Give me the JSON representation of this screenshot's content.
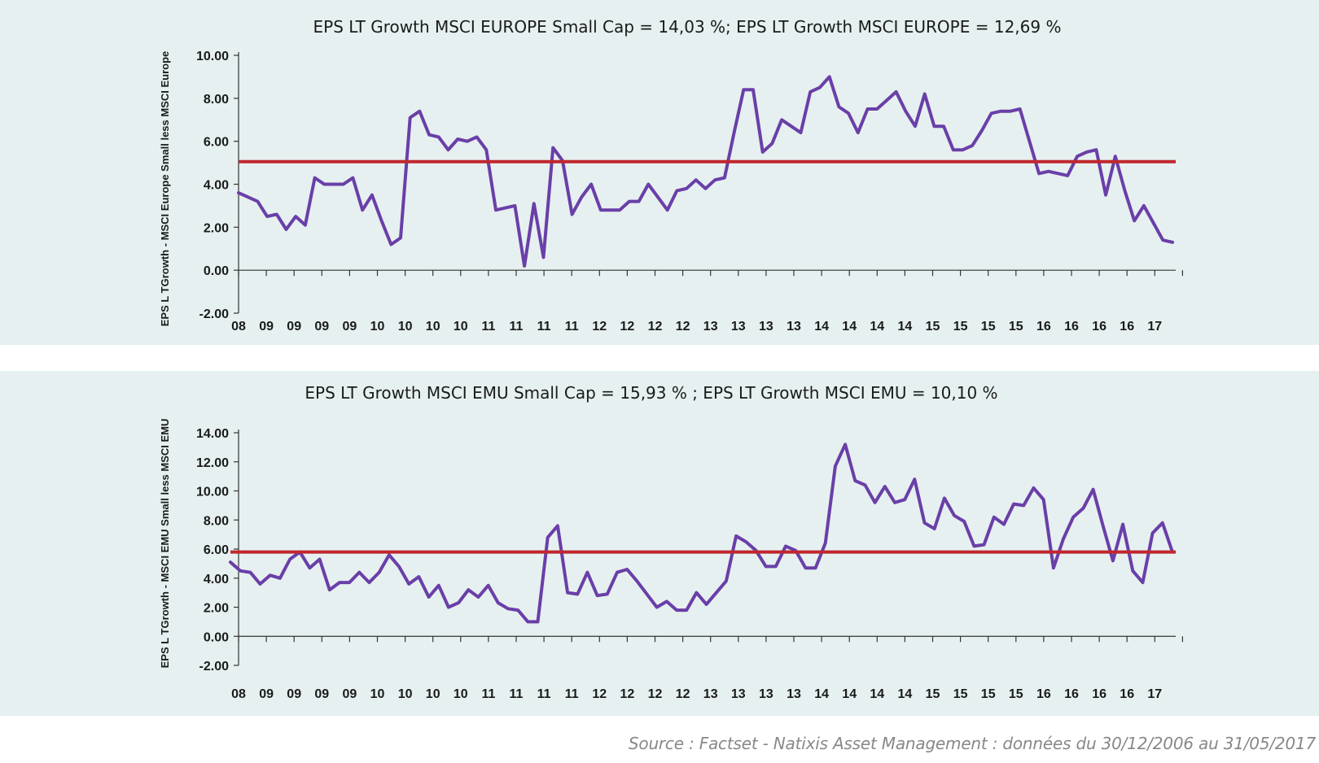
{
  "source": "Source : Factset - Natixis Asset Management : données du 30/12/2006 au 31/05/2017",
  "chart_data": [
    {
      "type": "line",
      "title": "EPS LT Growth MSCI EUROPE Small Cap = 14,03 %; EPS LT Growth MSCI EUROPE = 12,69 %",
      "ylabel": "EPS L TGrowth - MSCI Europe Small less MSCI Europe",
      "xlabel": "",
      "ylim": [
        -2,
        10
      ],
      "y_ticks": [
        "10.00",
        "8.00",
        "6.00",
        "4.00",
        "2.00",
        "0.00",
        "-2.00"
      ],
      "x_tick_labels": [
        "08",
        "09",
        "09",
        "09",
        "09",
        "10",
        "10",
        "10",
        "10",
        "11",
        "11",
        "11",
        "11",
        "12",
        "12",
        "12",
        "12",
        "13",
        "13",
        "13",
        "13",
        "14",
        "14",
        "14",
        "14",
        "15",
        "15",
        "15",
        "15",
        "16",
        "16",
        "16",
        "16",
        "17"
      ],
      "reference_line": 5.05,
      "series": [
        {
          "values": [
            3.6,
            3.4,
            3.2,
            2.5,
            2.6,
            1.9,
            2.5,
            2.1,
            4.3,
            4.0,
            4.0,
            4.0,
            4.3,
            2.8,
            3.5,
            2.3,
            1.2,
            1.5,
            7.1,
            7.4,
            6.3,
            6.2,
            5.6,
            6.1,
            6.0,
            6.2,
            5.6,
            2.8,
            2.9,
            3.0,
            0.2,
            3.1,
            0.6,
            5.7,
            5.1,
            2.6,
            3.4,
            4.0,
            2.8,
            2.8,
            2.8,
            3.2,
            3.2,
            4.0,
            3.4,
            2.8,
            3.7,
            3.8,
            4.2,
            3.8,
            4.2,
            4.3,
            6.4,
            8.4,
            8.4,
            5.5,
            5.9,
            7.0,
            6.7,
            6.4,
            8.3,
            8.5,
            9.0,
            7.6,
            7.3,
            6.4,
            7.5,
            7.5,
            7.9,
            8.3,
            7.4,
            6.7,
            8.2,
            6.7,
            6.7,
            5.6,
            5.6,
            5.8,
            6.5,
            7.3,
            7.4,
            7.4,
            7.5,
            6.0,
            4.5,
            4.6,
            4.5,
            4.4,
            5.3,
            5.5,
            5.6,
            3.5,
            5.3,
            3.7,
            2.3,
            3.0,
            2.2,
            1.4,
            1.3
          ]
        }
      ]
    },
    {
      "type": "line",
      "title": "EPS LT Growth MSCI EMU Small  Cap = 15,93 % ; EPS LT Growth MSCI EMU = 10,10 %",
      "ylabel": "EPS L TGrowth - MSCI EMU Small less MSCI EMU",
      "xlabel": "",
      "ylim": [
        -2,
        14
      ],
      "y_ticks": [
        "14.00",
        "12.00",
        "10.00",
        "8.00",
        "6.00",
        "4.00",
        "2.00",
        "0.00",
        "-2.00"
      ],
      "x_tick_labels": [
        "08",
        "09",
        "09",
        "09",
        "09",
        "10",
        "10",
        "10",
        "10",
        "11",
        "11",
        "11",
        "11",
        "12",
        "12",
        "12",
        "12",
        "13",
        "13",
        "13",
        "13",
        "14",
        "14",
        "14",
        "14",
        "15",
        "15",
        "15",
        "15",
        "16",
        "16",
        "16",
        "16",
        "17"
      ],
      "reference_line": 5.8,
      "series": [
        {
          "values": [
            5.1,
            4.5,
            4.4,
            3.6,
            4.2,
            4.0,
            5.3,
            5.8,
            4.7,
            5.3,
            3.2,
            3.7,
            3.7,
            4.4,
            3.7,
            4.4,
            5.6,
            4.8,
            3.6,
            4.1,
            2.7,
            3.5,
            2.0,
            2.3,
            3.2,
            2.7,
            3.5,
            2.3,
            1.9,
            1.8,
            1.0,
            1.0,
            6.8,
            7.6,
            3.0,
            2.9,
            4.4,
            2.8,
            2.9,
            4.4,
            4.6,
            3.8,
            2.9,
            2.0,
            2.4,
            1.8,
            1.8,
            3.0,
            2.2,
            3.0,
            3.8,
            6.9,
            6.5,
            5.9,
            4.8,
            4.8,
            6.2,
            5.9,
            4.7,
            4.7,
            6.4,
            11.7,
            13.2,
            10.7,
            10.4,
            9.2,
            10.3,
            9.2,
            9.4,
            10.8,
            7.8,
            7.4,
            9.5,
            8.3,
            7.9,
            6.2,
            6.3,
            8.2,
            7.7,
            9.1,
            9.0,
            10.2,
            9.4,
            4.7,
            6.7,
            8.2,
            8.8,
            10.1,
            7.6,
            5.2,
            7.7,
            4.5,
            3.7,
            7.1,
            7.8,
            5.8
          ]
        }
      ]
    }
  ]
}
